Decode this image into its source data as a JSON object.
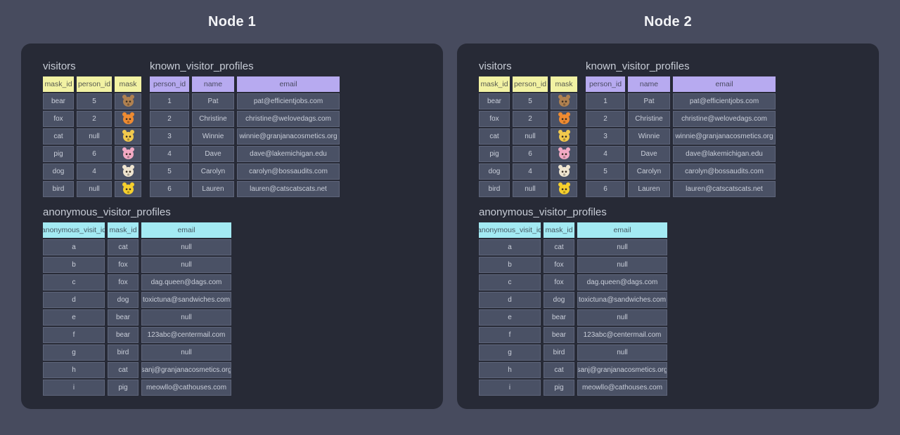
{
  "page": {
    "background_color": "#474b5e",
    "panel_color": "#272a36",
    "cell_color": "#4a5165",
    "cell_border_color": "#5e657a",
    "cell_text_color": "#c9ced9"
  },
  "nodes": [
    {
      "title": "Node 1"
    },
    {
      "title": "Node 2"
    }
  ],
  "tables": {
    "visitors": {
      "title": "visitors",
      "header_bg": "#f2f2a3",
      "columns": [
        "mask_id",
        "person_id",
        "mask"
      ],
      "rows": [
        [
          "bear",
          "5",
          "🐻"
        ],
        [
          "fox",
          "2",
          "🦊"
        ],
        [
          "cat",
          "null",
          "🐱"
        ],
        [
          "pig",
          "6",
          "🐷"
        ],
        [
          "dog",
          "4",
          "🐶"
        ],
        [
          "bird",
          "null",
          "🐤"
        ]
      ]
    },
    "known_visitor_profiles": {
      "title": "known_visitor_profiles",
      "header_bg": "#b7aaf0",
      "columns": [
        "person_id",
        "name",
        "email"
      ],
      "rows": [
        [
          "1",
          "Pat",
          "pat@efficientjobs.com"
        ],
        [
          "2",
          "Christine",
          "christine@welovedags.com"
        ],
        [
          "3",
          "Winnie",
          "winnie@granjanacosmetics.org"
        ],
        [
          "4",
          "Dave",
          "dave@lakemichigan.edu"
        ],
        [
          "5",
          "Carolyn",
          "carolyn@bossaudits.com"
        ],
        [
          "6",
          "Lauren",
          "lauren@catscatscats.net"
        ]
      ]
    },
    "anonymous_visitor_profiles": {
      "title": "anonymous_visitor_profiles",
      "header_bg": "#a3eaf3",
      "columns": [
        "anonymous_visit_id",
        "mask_id",
        "email"
      ],
      "rows": [
        [
          "a",
          "cat",
          "null"
        ],
        [
          "b",
          "fox",
          "null"
        ],
        [
          "c",
          "fox",
          "dag.queen@dags.com"
        ],
        [
          "d",
          "dog",
          "toxictuna@sandwiches.com"
        ],
        [
          "e",
          "bear",
          "null"
        ],
        [
          "f",
          "bear",
          "123abc@centermail.com"
        ],
        [
          "g",
          "bird",
          "null"
        ],
        [
          "h",
          "cat",
          "sanj@granjanacosmetics.org"
        ],
        [
          "i",
          "pig",
          "meowllo@cathouses.com"
        ]
      ]
    }
  },
  "mask_icons": {
    "bear": {
      "name": "bear-face-emoji",
      "glyph": "🐻",
      "color": "#b08150"
    },
    "fox": {
      "name": "fox-face-emoji",
      "glyph": "🦊",
      "color": "#ef8b31"
    },
    "cat": {
      "name": "cat-face-emoji",
      "glyph": "🐱",
      "color": "#f2c94c"
    },
    "pig": {
      "name": "pig-face-emoji",
      "glyph": "🐷",
      "color": "#f2a9c4"
    },
    "dog": {
      "name": "dog-face-emoji",
      "glyph": "🐶",
      "color": "#efe5d0"
    },
    "bird": {
      "name": "bird-face-emoji",
      "glyph": "🐤",
      "color": "#f6d02d"
    }
  }
}
